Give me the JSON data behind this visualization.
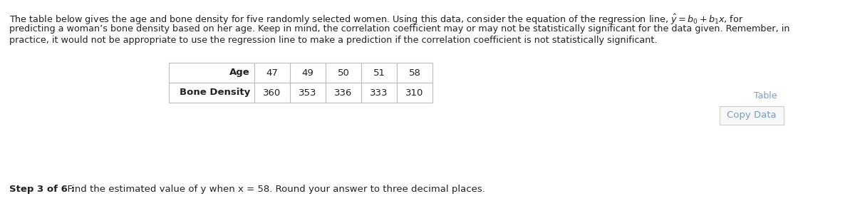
{
  "desc_line1": "The table below gives the age and bone density for five randomly selected women. Using this data, consider the equation of the regression line, $\\hat{y} = b_0 + b_1x$, for",
  "desc_line2": "predicting a woman’s bone density based on her age. Keep in mind, the correlation coefficient may or may not be statistically significant for the data given. Remember, in",
  "desc_line3": "practice, it would not be appropriate to use the regression line to make a prediction if the correlation coefficient is not statistically significant.",
  "row1": [
    "Age",
    "47",
    "49",
    "50",
    "51",
    "58"
  ],
  "row2": [
    "Bone Density",
    "360",
    "353",
    "336",
    "333",
    "310"
  ],
  "table_label": "Table",
  "copy_button_label": "Copy Data",
  "step_bold": "Step 3 of 6 :",
  "step_normal": "  Find the estimated value of y when x = 58. Round your answer to three decimal places.",
  "bg_color": "#ffffff",
  "text_color": "#222222",
  "table_color": "#555555",
  "label_color": "#7a9cbf",
  "border_color": "#bbbbbb",
  "desc_fontsize": 9.2,
  "table_fontsize": 9.5,
  "step_fontsize": 9.5,
  "table_label_fontsize": 9.0,
  "copy_fontsize": 9.5
}
